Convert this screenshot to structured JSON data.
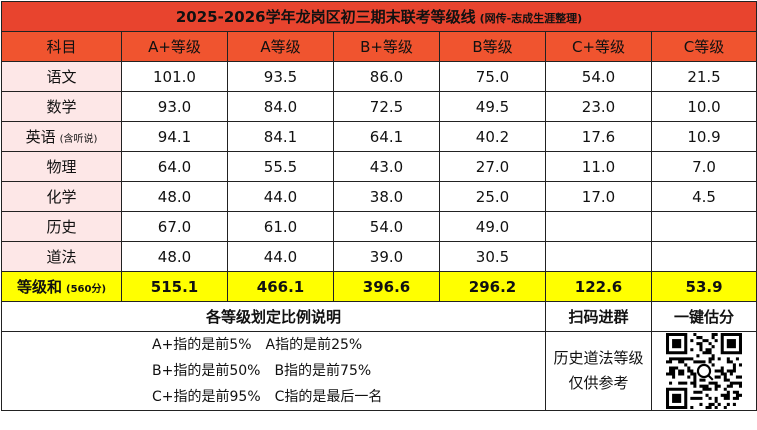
{
  "title": "2025-2026学年龙岗区初三期末联考等级线",
  "title_note": "(网传-志成生涯整理)",
  "headers": [
    "科目",
    "A+等级",
    "A等级",
    "B+等级",
    "B等级",
    "C+等级",
    "C等级"
  ],
  "rows": [
    {
      "subject": "语文",
      "note": "",
      "values": [
        "101.0",
        "93.5",
        "86.0",
        "75.0",
        "54.0",
        "21.5"
      ]
    },
    {
      "subject": "数学",
      "note": "",
      "values": [
        "93.0",
        "84.0",
        "72.5",
        "49.5",
        "23.0",
        "10.0"
      ]
    },
    {
      "subject": "英语",
      "note": "(含听说)",
      "values": [
        "94.1",
        "84.1",
        "64.1",
        "40.2",
        "17.6",
        "10.9"
      ]
    },
    {
      "subject": "物理",
      "note": "",
      "values": [
        "64.0",
        "55.5",
        "43.0",
        "27.0",
        "11.0",
        "7.0"
      ]
    },
    {
      "subject": "化学",
      "note": "",
      "values": [
        "48.0",
        "44.0",
        "38.0",
        "25.0",
        "17.0",
        "4.5"
      ]
    },
    {
      "subject": "历史",
      "note": "",
      "values": [
        "67.0",
        "61.0",
        "54.0",
        "49.0",
        "",
        ""
      ]
    },
    {
      "subject": "道法",
      "note": "",
      "values": [
        "48.0",
        "44.0",
        "39.0",
        "30.5",
        "",
        ""
      ]
    }
  ],
  "total": {
    "label": "等级和",
    "note": "(560分)",
    "values": [
      "515.1",
      "466.1",
      "396.6",
      "296.2",
      "122.6",
      "53.9"
    ]
  },
  "section": {
    "rules_title": "各等级划定比例说明",
    "scan_label": "扫码进群",
    "estimate_label": "一键估分"
  },
  "rules": [
    [
      "A+指的是前5%",
      "A指的是前25%"
    ],
    [
      "B+指的是前50%",
      "B指的是前75%"
    ],
    [
      "C+指的是前95%",
      "C指的是最后一名"
    ]
  ],
  "side_note": [
    "历史道法等级",
    "仅供参考"
  ],
  "colors": {
    "title_bg": "#e8442e",
    "header_bg": "#f0542f",
    "subject_bg": "#fde7e7",
    "total_bg": "#ffff00",
    "accent_text": "#e60012"
  }
}
